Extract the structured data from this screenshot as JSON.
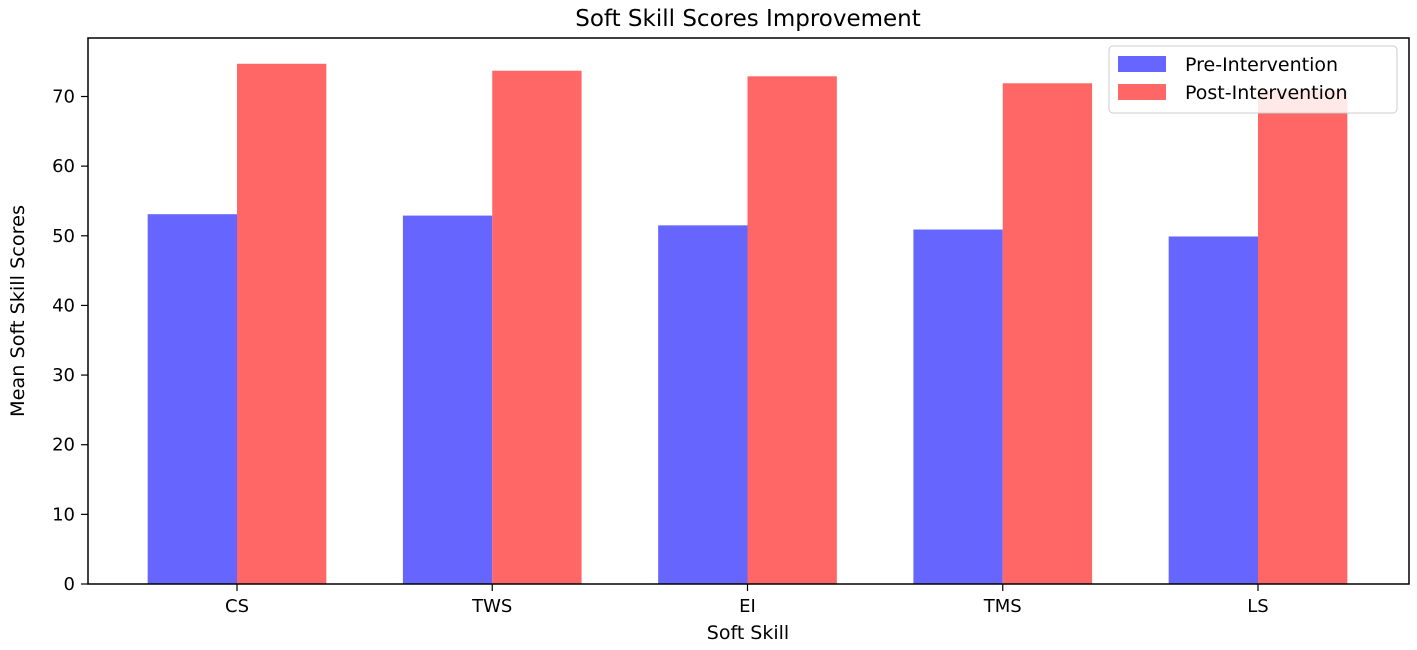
{
  "chart_data": {
    "type": "bar",
    "title": "Soft Skill Scores Improvement",
    "xlabel": "Soft Skill",
    "ylabel": "Mean Soft Skill Scores",
    "categories": [
      "CS",
      "TWS",
      "EI",
      "TMS",
      "LS"
    ],
    "series": [
      {
        "name": "Pre-Intervention",
        "color": "#6666ff",
        "values": [
          53.1,
          52.9,
          51.5,
          50.9,
          49.9
        ]
      },
      {
        "name": "Post-Intervention",
        "color": "#ff6666",
        "values": [
          74.7,
          73.7,
          72.9,
          71.9,
          70.9
        ]
      }
    ],
    "ylim": [
      0,
      78.4
    ],
    "yticks": [
      0,
      10,
      20,
      30,
      40,
      50,
      60,
      70
    ],
    "grid": false,
    "legend_position": "top-right"
  }
}
